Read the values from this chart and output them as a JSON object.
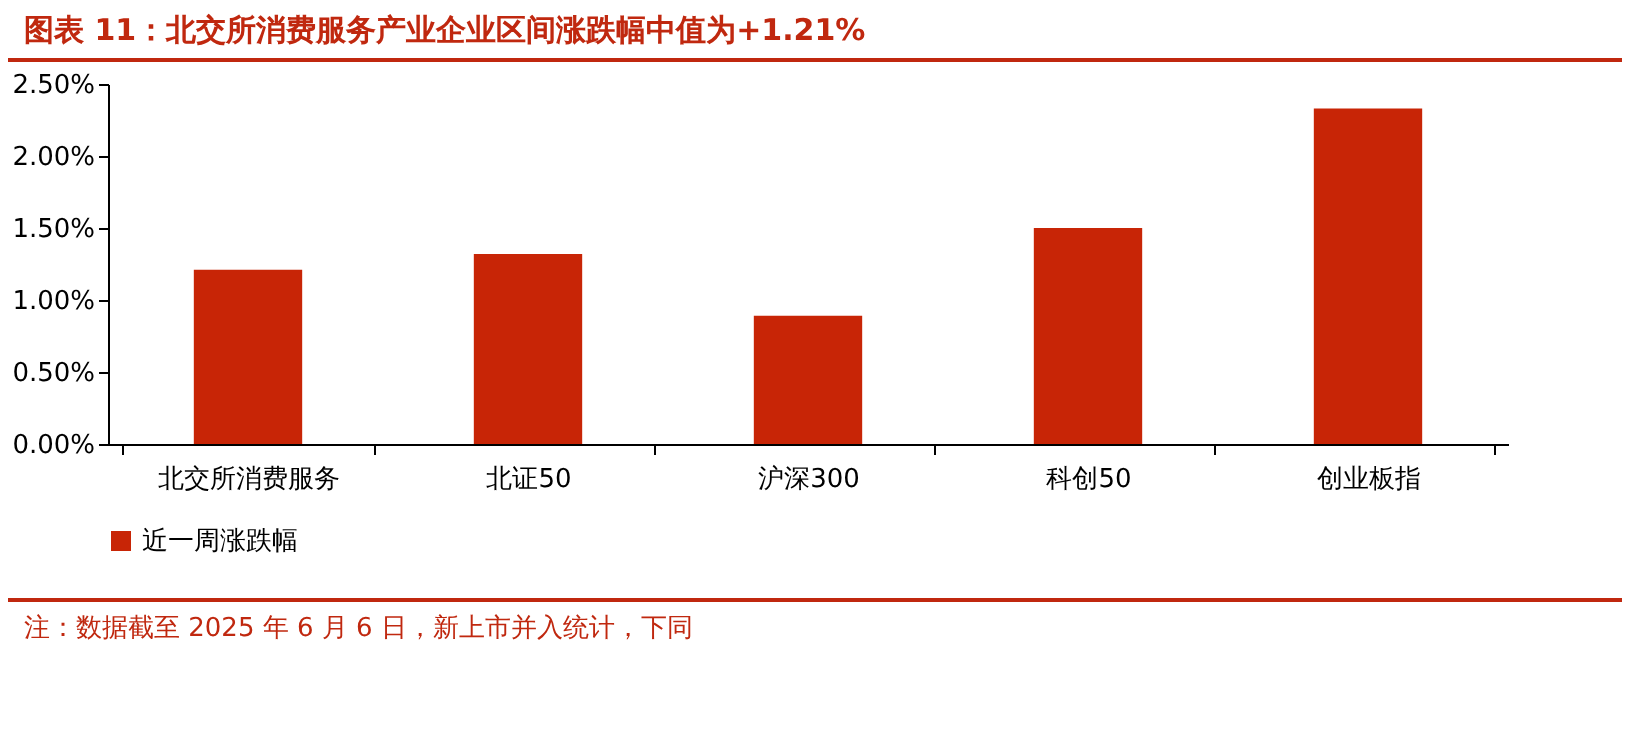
{
  "chart_data": {
    "type": "bar",
    "title": "图表 11：北交所消费服务产业企业区间涨跌幅中值为+1.21%",
    "categories": [
      "北交所消费服务",
      "北证50",
      "沪深300",
      "科创50",
      "创业板指"
    ],
    "series": [
      {
        "name": "近一周涨跌幅",
        "color": "#c82506",
        "values": [
          1.21,
          1.32,
          0.89,
          1.5,
          2.33
        ]
      }
    ],
    "ylim": [
      0,
      2.5
    ],
    "yticks": [
      {
        "value": 0,
        "label": "0.00%"
      },
      {
        "value": 0.5,
        "label": "0.50%"
      },
      {
        "value": 1,
        "label": "1.00%"
      },
      {
        "value": 1.5,
        "label": "1.50%"
      },
      {
        "value": 2,
        "label": "2.00%"
      },
      {
        "value": 2.5,
        "label": "2.50%"
      }
    ],
    "grid": false,
    "legend": "bottom",
    "annotations": [
      "注：数据截至 2025 年 6 月 6 日，新上市并入统计，下同"
    ]
  }
}
